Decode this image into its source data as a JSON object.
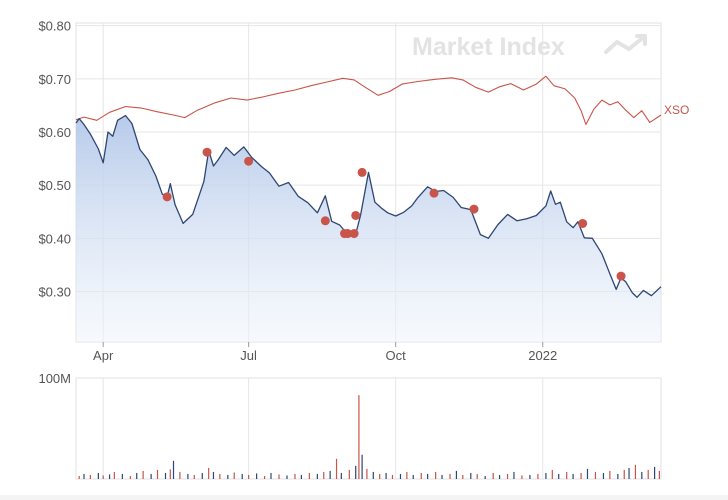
{
  "watermark": "Market Index",
  "chart_data": [
    {
      "type": "line",
      "title": "",
      "y_tick_labels": [
        "$0.80",
        "$0.70",
        "$0.60",
        "$0.50",
        "$0.40",
        "$0.30"
      ],
      "y_ticks": [
        0.8,
        0.7,
        0.6,
        0.5,
        0.4,
        0.3
      ],
      "ylim": [
        0.205,
        0.805
      ],
      "x_tick_labels": [
        "Apr",
        "Jul",
        "Oct",
        "2022"
      ],
      "x_tick_dates": [
        "2021-04-01",
        "2021-07-01",
        "2021-10-01",
        "2022-01-01"
      ],
      "xlim": [
        "2021-03-15",
        "2022-03-16"
      ],
      "grid": true,
      "series": [
        {
          "name": "XSO",
          "color": "#c9544a",
          "points": [
            [
              "2021-03-15",
              0.623
            ],
            [
              "2021-03-20",
              0.628
            ],
            [
              "2021-03-28",
              0.622
            ],
            [
              "2021-04-05",
              0.637
            ],
            [
              "2021-04-15",
              0.648
            ],
            [
              "2021-04-25",
              0.645
            ],
            [
              "2021-05-05",
              0.638
            ],
            [
              "2021-05-15",
              0.632
            ],
            [
              "2021-05-22",
              0.627
            ],
            [
              "2021-05-30",
              0.641
            ],
            [
              "2021-06-10",
              0.655
            ],
            [
              "2021-06-20",
              0.664
            ],
            [
              "2021-06-30",
              0.66
            ],
            [
              "2021-07-10",
              0.666
            ],
            [
              "2021-07-20",
              0.673
            ],
            [
              "2021-07-30",
              0.679
            ],
            [
              "2021-08-09",
              0.687
            ],
            [
              "2021-08-19",
              0.694
            ],
            [
              "2021-08-29",
              0.701
            ],
            [
              "2021-09-05",
              0.698
            ],
            [
              "2021-09-12",
              0.684
            ],
            [
              "2021-09-20",
              0.669
            ],
            [
              "2021-09-27",
              0.676
            ],
            [
              "2021-10-05",
              0.69
            ],
            [
              "2021-10-15",
              0.695
            ],
            [
              "2021-10-25",
              0.699
            ],
            [
              "2021-11-05",
              0.702
            ],
            [
              "2021-11-12",
              0.698
            ],
            [
              "2021-11-20",
              0.684
            ],
            [
              "2021-11-28",
              0.675
            ],
            [
              "2021-12-05",
              0.685
            ],
            [
              "2021-12-12",
              0.691
            ],
            [
              "2021-12-20",
              0.679
            ],
            [
              "2021-12-28",
              0.69
            ],
            [
              "2022-01-03",
              0.705
            ],
            [
              "2022-01-08",
              0.687
            ],
            [
              "2022-01-15",
              0.681
            ],
            [
              "2022-01-21",
              0.664
            ],
            [
              "2022-01-25",
              0.64
            ],
            [
              "2022-01-28",
              0.614
            ],
            [
              "2022-02-02",
              0.643
            ],
            [
              "2022-02-07",
              0.66
            ],
            [
              "2022-02-12",
              0.651
            ],
            [
              "2022-02-17",
              0.657
            ],
            [
              "2022-02-22",
              0.641
            ],
            [
              "2022-02-27",
              0.627
            ],
            [
              "2022-03-04",
              0.64
            ],
            [
              "2022-03-09",
              0.618
            ],
            [
              "2022-03-16",
              0.632
            ]
          ]
        },
        {
          "name": "",
          "color": "#2d4673",
          "points": [
            [
              "2021-03-15",
              0.617
            ],
            [
              "2021-03-17",
              0.625
            ],
            [
              "2021-03-20",
              0.614
            ],
            [
              "2021-03-24",
              0.596
            ],
            [
              "2021-03-29",
              0.568
            ],
            [
              "2021-04-01",
              0.542
            ],
            [
              "2021-04-04",
              0.6
            ],
            [
              "2021-04-07",
              0.592
            ],
            [
              "2021-04-10",
              0.622
            ],
            [
              "2021-04-15",
              0.631
            ],
            [
              "2021-04-19",
              0.616
            ],
            [
              "2021-04-24",
              0.567
            ],
            [
              "2021-04-29",
              0.548
            ],
            [
              "2021-05-04",
              0.517
            ],
            [
              "2021-05-08",
              0.483
            ],
            [
              "2021-05-11",
              0.478
            ],
            [
              "2021-05-13",
              0.503
            ],
            [
              "2021-05-16",
              0.463
            ],
            [
              "2021-05-21",
              0.428
            ],
            [
              "2021-05-27",
              0.445
            ],
            [
              "2021-06-03",
              0.507
            ],
            [
              "2021-06-06",
              0.565
            ],
            [
              "2021-06-09",
              0.536
            ],
            [
              "2021-06-12",
              0.548
            ],
            [
              "2021-06-17",
              0.571
            ],
            [
              "2021-06-22",
              0.556
            ],
            [
              "2021-06-28",
              0.572
            ],
            [
              "2021-07-03",
              0.552
            ],
            [
              "2021-07-09",
              0.535
            ],
            [
              "2021-07-14",
              0.523
            ],
            [
              "2021-07-20",
              0.498
            ],
            [
              "2021-07-26",
              0.505
            ],
            [
              "2021-08-01",
              0.479
            ],
            [
              "2021-08-07",
              0.467
            ],
            [
              "2021-08-13",
              0.448
            ],
            [
              "2021-08-18",
              0.48
            ],
            [
              "2021-08-22",
              0.432
            ],
            [
              "2021-08-27",
              0.425
            ],
            [
              "2021-08-31",
              0.411
            ],
            [
              "2021-09-03",
              0.412
            ],
            [
              "2021-09-06",
              0.408
            ],
            [
              "2021-09-09",
              0.443
            ],
            [
              "2021-09-14",
              0.524
            ],
            [
              "2021-09-18",
              0.468
            ],
            [
              "2021-09-22",
              0.457
            ],
            [
              "2021-09-26",
              0.448
            ],
            [
              "2021-10-01",
              0.442
            ],
            [
              "2021-10-06",
              0.449
            ],
            [
              "2021-10-11",
              0.461
            ],
            [
              "2021-10-15",
              0.477
            ],
            [
              "2021-10-21",
              0.497
            ],
            [
              "2021-10-26",
              0.488
            ],
            [
              "2021-10-31",
              0.49
            ],
            [
              "2021-11-06",
              0.477
            ],
            [
              "2021-11-11",
              0.458
            ],
            [
              "2021-11-17",
              0.454
            ],
            [
              "2021-11-23",
              0.407
            ],
            [
              "2021-11-28",
              0.4
            ],
            [
              "2021-12-04",
              0.426
            ],
            [
              "2021-12-10",
              0.445
            ],
            [
              "2021-12-16",
              0.433
            ],
            [
              "2021-12-22",
              0.437
            ],
            [
              "2021-12-28",
              0.443
            ],
            [
              "2022-01-03",
              0.461
            ],
            [
              "2022-01-06",
              0.489
            ],
            [
              "2022-01-09",
              0.464
            ],
            [
              "2022-01-12",
              0.468
            ],
            [
              "2022-01-16",
              0.431
            ],
            [
              "2022-01-20",
              0.42
            ],
            [
              "2022-01-23",
              0.431
            ],
            [
              "2022-01-27",
              0.401
            ],
            [
              "2022-02-01",
              0.4
            ],
            [
              "2022-02-07",
              0.371
            ],
            [
              "2022-02-12",
              0.333
            ],
            [
              "2022-02-16",
              0.304
            ],
            [
              "2022-02-19",
              0.326
            ],
            [
              "2022-02-22",
              0.318
            ],
            [
              "2022-02-26",
              0.298
            ],
            [
              "2022-03-01",
              0.289
            ],
            [
              "2022-03-05",
              0.302
            ],
            [
              "2022-03-10",
              0.292
            ],
            [
              "2022-03-16",
              0.309
            ]
          ]
        }
      ],
      "event_markers": [
        [
          "2021-05-11",
          0.478
        ],
        [
          "2021-06-05",
          0.562
        ],
        [
          "2021-07-01",
          0.545
        ],
        [
          "2021-08-18",
          0.433
        ],
        [
          "2021-08-30",
          0.409
        ],
        [
          "2021-09-01",
          0.409
        ],
        [
          "2021-09-05",
          0.409
        ],
        [
          "2021-09-06",
          0.443
        ],
        [
          "2021-09-10",
          0.524
        ],
        [
          "2021-10-25",
          0.485
        ],
        [
          "2021-11-19",
          0.455
        ],
        [
          "2022-01-26",
          0.428
        ],
        [
          "2022-02-19",
          0.329
        ]
      ]
    },
    {
      "type": "bar",
      "title": "",
      "y_tick_labels": [
        "100M"
      ],
      "y_ticks": [
        100000000
      ],
      "ylim": [
        0,
        100000000
      ],
      "colors": [
        "#c9544a",
        "#2d4673"
      ],
      "bars": [
        [
          "2021-03-17",
          3000000
        ],
        [
          "2021-03-20",
          5000000
        ],
        [
          "2021-03-24",
          4000000
        ],
        [
          "2021-03-29",
          6000000
        ],
        [
          "2021-04-01",
          3500000
        ],
        [
          "2021-04-05",
          4500000
        ],
        [
          "2021-04-08",
          7000000
        ],
        [
          "2021-04-13",
          5000000
        ],
        [
          "2021-04-18",
          3000000
        ],
        [
          "2021-04-22",
          6000000
        ],
        [
          "2021-04-26",
          8000000
        ],
        [
          "2021-05-01",
          5000000
        ],
        [
          "2021-05-05",
          9000000
        ],
        [
          "2021-05-10",
          6000000
        ],
        [
          "2021-05-13",
          9500000
        ],
        [
          "2021-05-15",
          18000000
        ],
        [
          "2021-05-19",
          7000000
        ],
        [
          "2021-05-24",
          5000000
        ],
        [
          "2021-05-28",
          4000000
        ],
        [
          "2021-06-02",
          6000000
        ],
        [
          "2021-06-06",
          11000000
        ],
        [
          "2021-06-09",
          7000000
        ],
        [
          "2021-06-13",
          5000000
        ],
        [
          "2021-06-18",
          4000000
        ],
        [
          "2021-06-22",
          6500000
        ],
        [
          "2021-06-27",
          5000000
        ],
        [
          "2021-07-01",
          4000000
        ],
        [
          "2021-07-06",
          5500000
        ],
        [
          "2021-07-11",
          3000000
        ],
        [
          "2021-07-15",
          6000000
        ],
        [
          "2021-07-20",
          4500000
        ],
        [
          "2021-07-25",
          3500000
        ],
        [
          "2021-07-30",
          5000000
        ],
        [
          "2021-08-03",
          4000000
        ],
        [
          "2021-08-08",
          6000000
        ],
        [
          "2021-08-13",
          5000000
        ],
        [
          "2021-08-17",
          7000000
        ],
        [
          "2021-08-21",
          8000000
        ],
        [
          "2021-08-25",
          20000000
        ],
        [
          "2021-08-28",
          6000000
        ],
        [
          "2021-09-02",
          9000000
        ],
        [
          "2021-09-06",
          13000000
        ],
        [
          "2021-09-08",
          83000000
        ],
        [
          "2021-09-10",
          24000000
        ],
        [
          "2021-09-13",
          10000000
        ],
        [
          "2021-09-17",
          7000000
        ],
        [
          "2021-09-21",
          5000000
        ],
        [
          "2021-09-25",
          6000000
        ],
        [
          "2021-09-29",
          4000000
        ],
        [
          "2021-10-04",
          5000000
        ],
        [
          "2021-10-08",
          7000000
        ],
        [
          "2021-10-12",
          4000000
        ],
        [
          "2021-10-17",
          6000000
        ],
        [
          "2021-10-21",
          5000000
        ],
        [
          "2021-10-26",
          7000000
        ],
        [
          "2021-10-30",
          4000000
        ],
        [
          "2021-11-04",
          5000000
        ],
        [
          "2021-11-08",
          8000000
        ],
        [
          "2021-11-12",
          4000000
        ],
        [
          "2021-11-17",
          6000000
        ],
        [
          "2021-11-21",
          5000000
        ],
        [
          "2021-11-26",
          3000000
        ],
        [
          "2021-12-01",
          6000000
        ],
        [
          "2021-12-05",
          4000000
        ],
        [
          "2021-12-10",
          5000000
        ],
        [
          "2021-12-14",
          7000000
        ],
        [
          "2021-12-19",
          3500000
        ],
        [
          "2021-12-24",
          4000000
        ],
        [
          "2021-12-29",
          5000000
        ],
        [
          "2022-01-03",
          6000000
        ],
        [
          "2022-01-07",
          9000000
        ],
        [
          "2022-01-11",
          5000000
        ],
        [
          "2022-01-16",
          7000000
        ],
        [
          "2022-01-20",
          5000000
        ],
        [
          "2022-01-25",
          6000000
        ],
        [
          "2022-01-29",
          10000000
        ],
        [
          "2022-02-03",
          7000000
        ],
        [
          "2022-02-08",
          6000000
        ],
        [
          "2022-02-12",
          8000000
        ],
        [
          "2022-02-17",
          5000000
        ],
        [
          "2022-02-21",
          9000000
        ],
        [
          "2022-02-24",
          11000000
        ],
        [
          "2022-02-28",
          14000000
        ],
        [
          "2022-03-04",
          7000000
        ],
        [
          "2022-03-08",
          9000000
        ],
        [
          "2022-03-12",
          12000000
        ],
        [
          "2022-03-15",
          8000000
        ]
      ]
    }
  ]
}
